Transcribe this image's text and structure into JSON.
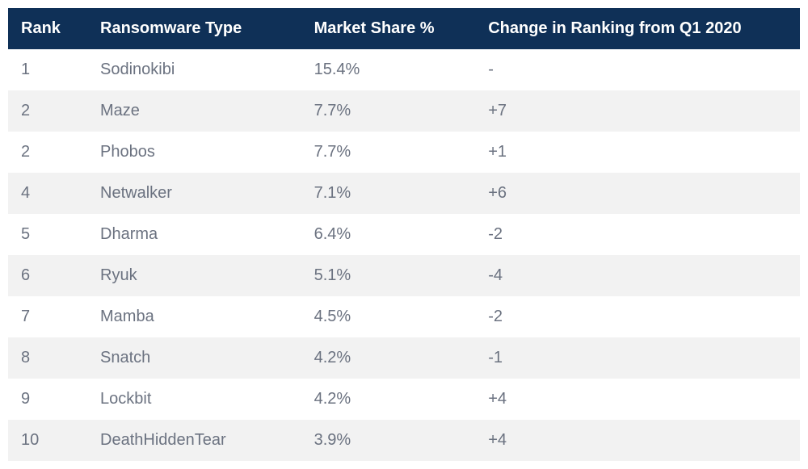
{
  "table": {
    "type": "table",
    "header_bg": "#0f3057",
    "header_text_color": "#ffffff",
    "header_font_weight": 700,
    "header_font_size": 20,
    "body_text_color": "#6b7280",
    "body_font_size": 20,
    "row_bg_even": "#ffffff",
    "row_bg_odd": "#f2f2f2",
    "column_widths_pct": [
      10,
      27,
      22,
      41
    ],
    "columns": [
      "Rank",
      "Ransomware Type",
      "Market Share %",
      "Change in Ranking from Q1 2020"
    ],
    "rows": [
      {
        "rank": "1",
        "type": "Sodinokibi",
        "share": "15.4%",
        "change": "-"
      },
      {
        "rank": "2",
        "type": "Maze",
        "share": "7.7%",
        "change": "+7"
      },
      {
        "rank": "2",
        "type": "Phobos",
        "share": "7.7%",
        "change": "+1"
      },
      {
        "rank": "4",
        "type": "Netwalker",
        "share": "7.1%",
        "change": "+6"
      },
      {
        "rank": "5",
        "type": "Dharma",
        "share": "6.4%",
        "change": "-2"
      },
      {
        "rank": "6",
        "type": "Ryuk",
        "share": "5.1%",
        "change": "-4"
      },
      {
        "rank": "7",
        "type": "Mamba",
        "share": "4.5%",
        "change": "-2"
      },
      {
        "rank": "8",
        "type": "Snatch",
        "share": "4.2%",
        "change": "-1"
      },
      {
        "rank": "9",
        "type": "Lockbit",
        "share": "4.2%",
        "change": "+4"
      },
      {
        "rank": "10",
        "type": "DeathHiddenTear",
        "share": "3.9%",
        "change": "+4"
      }
    ]
  }
}
